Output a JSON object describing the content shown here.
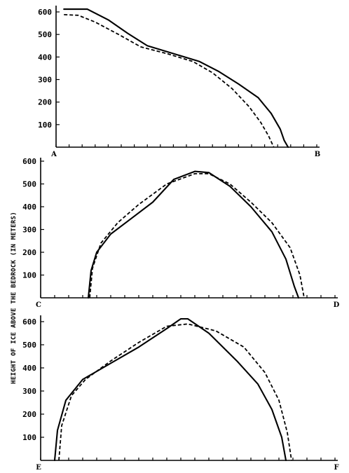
{
  "ylabel": "HEIGHT OF ICE ABOVE THE BEDROCK (IN METERS)",
  "line_color": "#000000",
  "chart_data": [
    {
      "type": "line",
      "start_label": "A",
      "end_label": "B",
      "ylim": [
        0,
        600
      ],
      "yticks": [
        100,
        200,
        300,
        400,
        500,
        600
      ],
      "xlim": [
        0,
        20
      ],
      "x_tick_count": 20,
      "series": [
        {
          "style": "solid",
          "x": [
            0.6,
            2.4,
            4.0,
            5.5,
            7.0,
            9.0,
            11.0,
            12.5,
            14.0,
            15.5,
            16.5,
            17.2,
            17.5,
            17.8
          ],
          "y": [
            612,
            612,
            565,
            505,
            450,
            415,
            380,
            335,
            280,
            220,
            150,
            80,
            30,
            0
          ]
        },
        {
          "style": "dashed",
          "x": [
            0.6,
            1.7,
            3.0,
            4.8,
            6.5,
            8.5,
            10.5,
            12.0,
            13.5,
            14.8,
            15.7,
            16.3,
            16.7
          ],
          "y": [
            588,
            585,
            555,
            500,
            445,
            415,
            380,
            330,
            260,
            180,
            110,
            50,
            0
          ]
        }
      ]
    },
    {
      "type": "line",
      "start_label": "C",
      "end_label": "D",
      "ylim": [
        0,
        600
      ],
      "yticks": [
        100,
        200,
        300,
        400,
        500,
        600
      ],
      "xlim": [
        0,
        21
      ],
      "x_tick_count": 21,
      "series": [
        {
          "style": "solid",
          "x": [
            3.4,
            3.6,
            4.0,
            5.0,
            6.5,
            8.0,
            9.5,
            11.0,
            12.0,
            13.5,
            15.0,
            16.5,
            17.5,
            18.1,
            18.4
          ],
          "y": [
            0,
            120,
            200,
            280,
            350,
            420,
            520,
            555,
            550,
            490,
            400,
            290,
            170,
            50,
            0
          ]
        },
        {
          "style": "dashed",
          "x": [
            3.5,
            3.7,
            4.3,
            5.5,
            7.0,
            9.0,
            11.0,
            12.0,
            13.5,
            15.0,
            16.5,
            17.8,
            18.5,
            18.8
          ],
          "y": [
            0,
            130,
            240,
            330,
            410,
            500,
            545,
            545,
            500,
            420,
            330,
            220,
            100,
            0
          ]
        }
      ]
    },
    {
      "type": "line",
      "start_label": "E",
      "end_label": "F",
      "ylim": [
        0,
        600
      ],
      "yticks": [
        100,
        200,
        300,
        400,
        500,
        600
      ],
      "xlim": [
        0,
        21
      ],
      "x_tick_count": 21,
      "series": [
        {
          "style": "solid",
          "x": [
            1.0,
            1.2,
            1.8,
            3.0,
            5.0,
            7.0,
            9.0,
            10.0,
            10.5,
            12.0,
            14.0,
            15.5,
            16.5,
            17.2,
            17.5
          ],
          "y": [
            0,
            130,
            260,
            350,
            420,
            490,
            570,
            612,
            612,
            550,
            430,
            330,
            220,
            100,
            0
          ]
        },
        {
          "style": "dashed",
          "x": [
            1.3,
            1.5,
            2.2,
            3.2,
            5.0,
            7.0,
            9.0,
            10.5,
            12.5,
            14.5,
            16.0,
            17.0,
            17.6,
            17.9
          ],
          "y": [
            0,
            150,
            280,
            350,
            430,
            510,
            580,
            590,
            560,
            490,
            380,
            260,
            120,
            0
          ]
        }
      ]
    }
  ]
}
